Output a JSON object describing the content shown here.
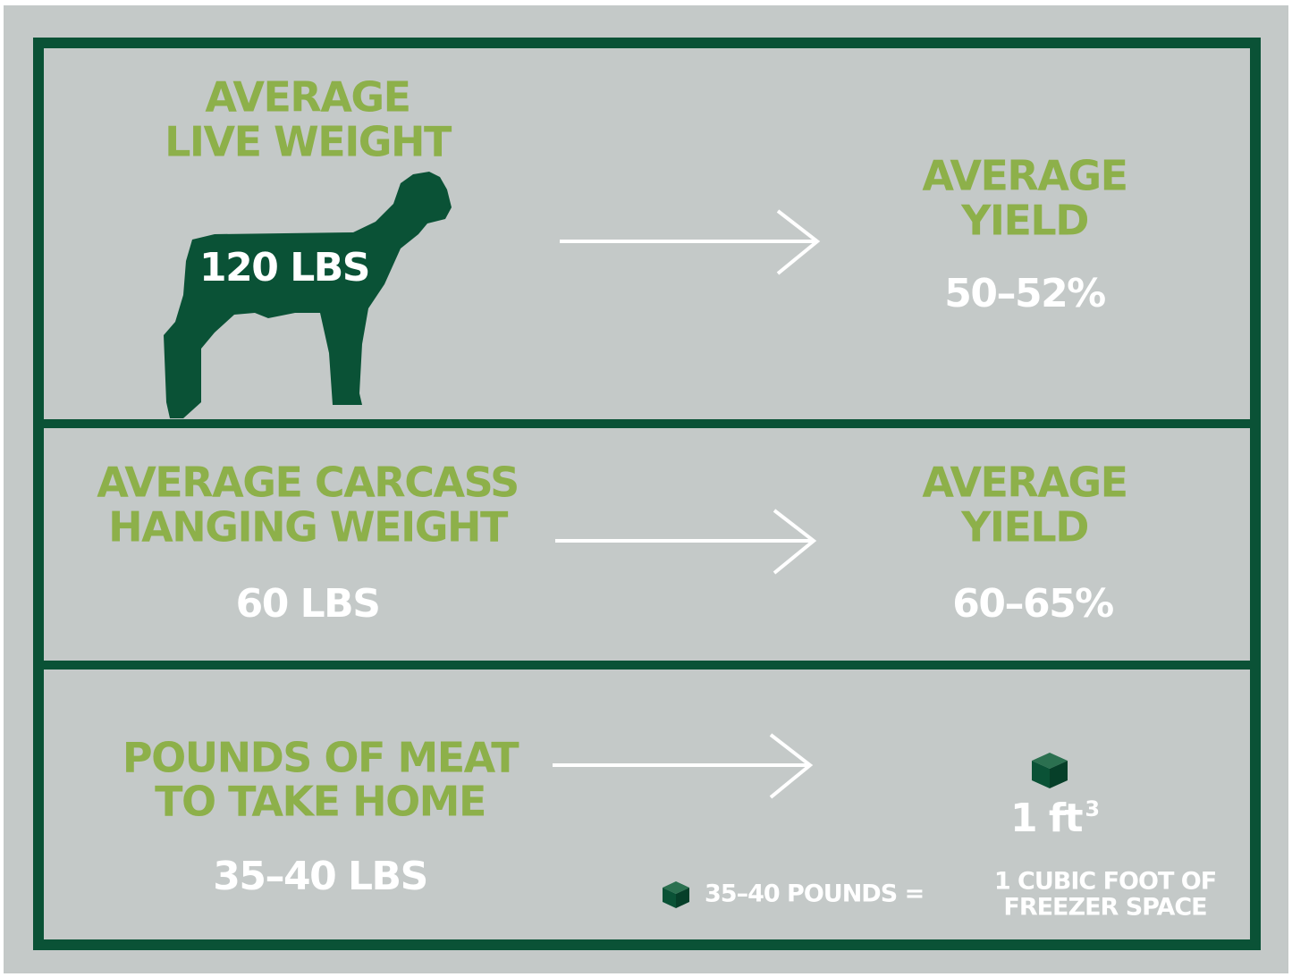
{
  "rows": [
    {
      "left_label": [
        "AVERAGE",
        "LIVE WEIGHT"
      ],
      "left_value": "120 LBS",
      "right_label": [
        "AVERAGE",
        "YIELD"
      ],
      "right_value": "50–52%"
    },
    {
      "left_label": [
        "AVERAGE CARCASS",
        "HANGING WEIGHT"
      ],
      "left_value": "60 LBS",
      "right_label": [
        "AVERAGE",
        "YIELD"
      ],
      "right_value": "60–65%"
    },
    {
      "left_label": [
        "POUNDS OF MEAT",
        "TO TAKE HOME"
      ],
      "left_value": "35–40 LBS",
      "right_value": {
        "base": "1 ft",
        "superscript": "3"
      }
    }
  ],
  "footnote": {
    "left": "35–40 POUNDS =",
    "right": [
      "1 CUBIC FOOT OF",
      "FREEZER SPACE"
    ]
  }
}
